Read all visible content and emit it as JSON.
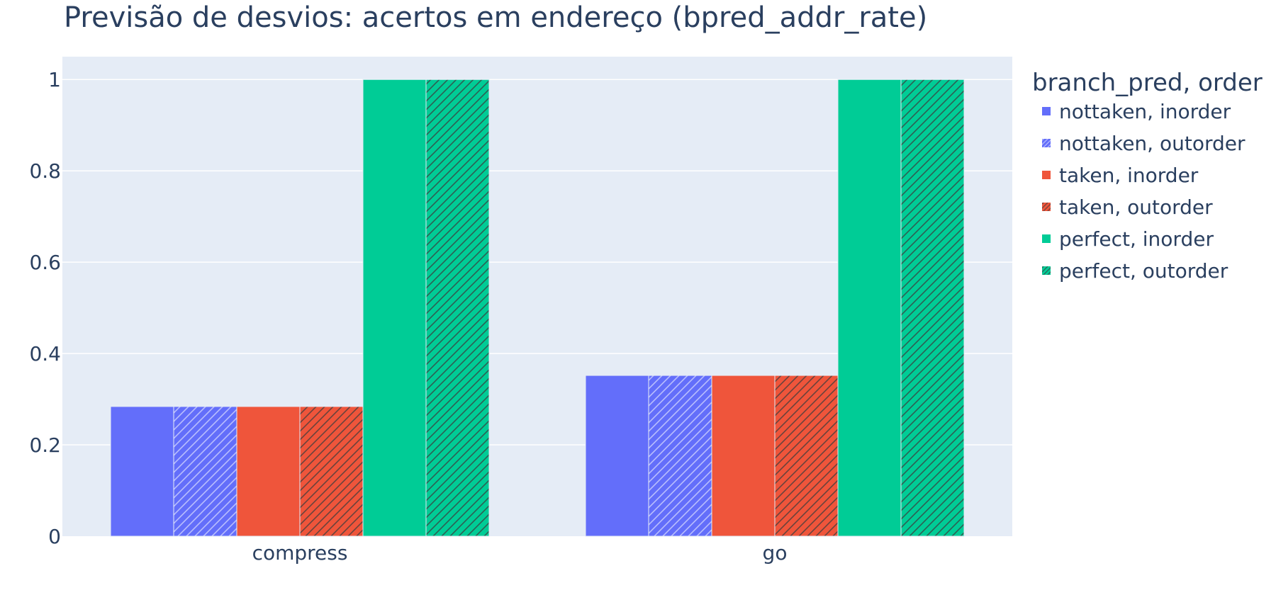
{
  "chart_data": {
    "type": "bar",
    "title": "Previsão de desvios: acertos em endereço (bpred_addr_rate)",
    "xlabel": "",
    "ylabel": "",
    "categories": [
      "compress",
      "go"
    ],
    "ylim": [
      0,
      1.05
    ],
    "yticks": [
      "0",
      "0.2",
      "0.4",
      "0.6",
      "0.8",
      "1"
    ],
    "grid": true,
    "legend": {
      "title": "branch_pred, order",
      "placement": "right"
    },
    "series": [
      {
        "name": "nottaken, inorder",
        "values": [
          0.284,
          0.352
        ],
        "color": "#636efa",
        "hatch": false
      },
      {
        "name": "nottaken, outorder",
        "values": [
          0.284,
          0.352
        ],
        "color": "#636efa",
        "hatch": true
      },
      {
        "name": "taken, inorder",
        "values": [
          0.284,
          0.352
        ],
        "color": "#ef553b",
        "hatch": false
      },
      {
        "name": "taken, outorder",
        "values": [
          0.284,
          0.352
        ],
        "color": "#ef553b",
        "hatch": true
      },
      {
        "name": "perfect, inorder",
        "values": [
          1.0,
          1.0
        ],
        "color": "#00cc96",
        "hatch": false
      },
      {
        "name": "perfect, outorder",
        "values": [
          1.0,
          1.0
        ],
        "color": "#00cc96",
        "hatch": true
      }
    ],
    "colors": {
      "plot_bg": "#e5ecf6",
      "grid": "#ffffff",
      "text": "#2a3f5f"
    }
  }
}
